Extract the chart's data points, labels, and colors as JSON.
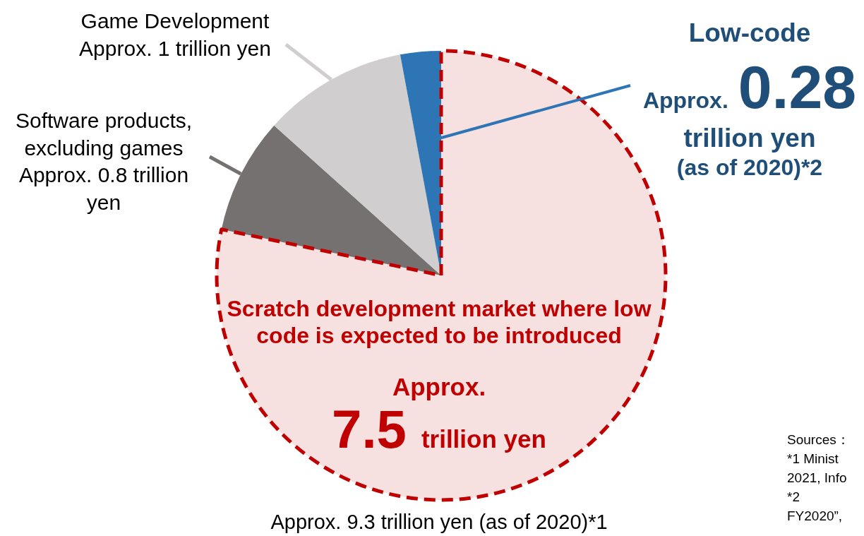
{
  "chart_data": {
    "type": "pie",
    "categories": [
      "Scratch development market where low code is expected to be introduced",
      "Software products, excluding games",
      "Game Development",
      "Low-code"
    ],
    "values": [
      7.5,
      0.8,
      1,
      0.28
    ],
    "colors": [
      "#f7e1e0",
      "#767171",
      "#d0cece",
      "#2e75b6"
    ],
    "value_labels": [
      "Approx. 7.5 trillion yen",
      "Approx. 0.8 trillion yen",
      "Approx. 1 trillion yen",
      "Approx. 0.28 trillion yen"
    ],
    "annotations": [
      "Approx. 9.3 trillion yen (as of 2020)*1",
      "(as of 2020)*2",
      "Sources：",
      "*1 Minist",
      "2021, Info",
      "*2",
      "FY2020”,"
    ],
    "legend": false
  }
}
